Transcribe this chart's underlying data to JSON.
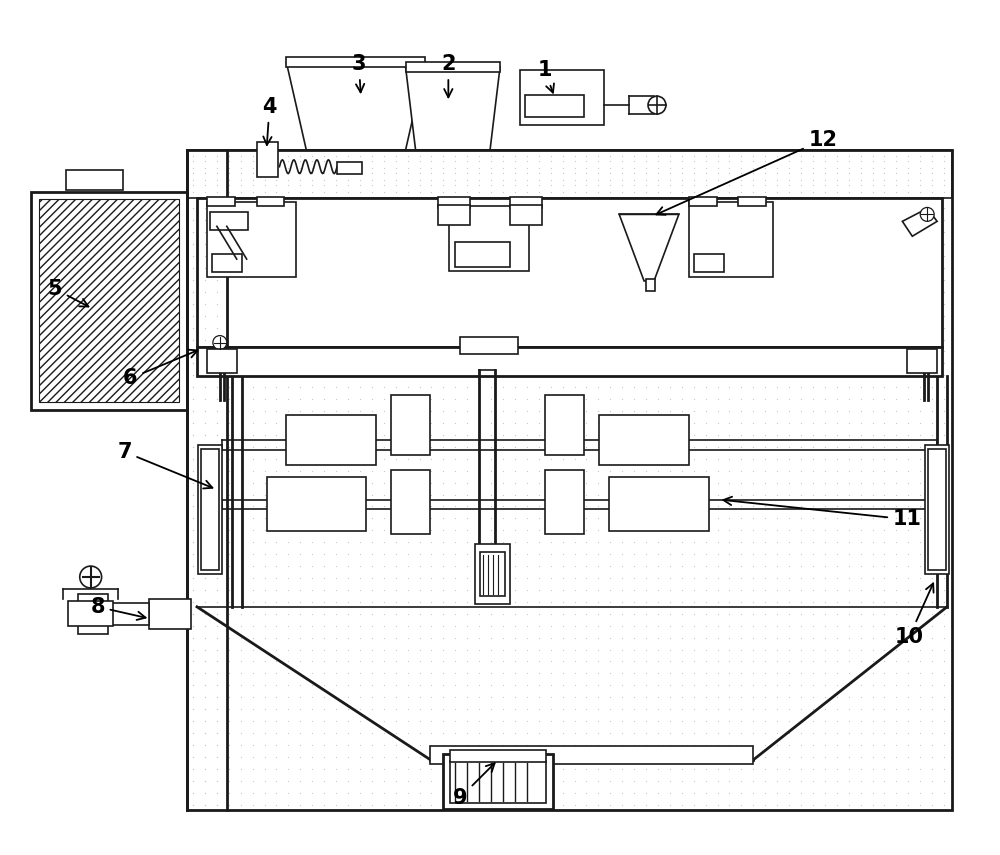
{
  "background_color": "#ffffff",
  "line_color": "#1a1a1a",
  "dot_color": "#b0b0b0",
  "lw": 1.2,
  "lw2": 2.0,
  "figsize": [
    10.0,
    8.55
  ],
  "dpi": 100
}
